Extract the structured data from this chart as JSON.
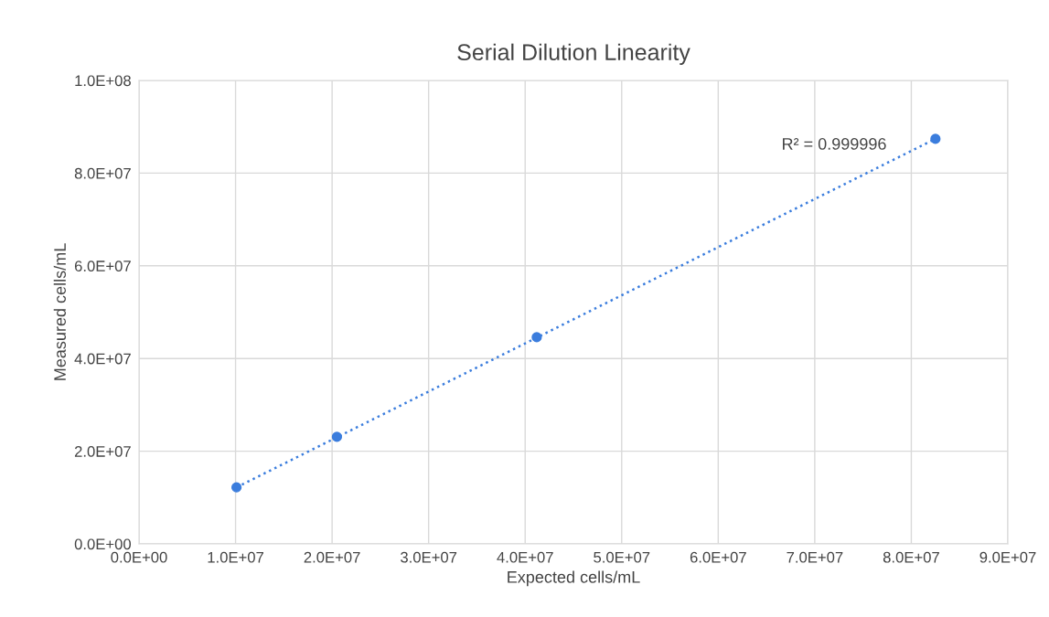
{
  "chart_data": {
    "type": "scatter",
    "title": "Serial Dilution Linearity",
    "xlabel": "Expected cells/mL",
    "ylabel": "Measured cells/mL",
    "series": [
      {
        "color": "#3b7ddd",
        "x": [
          10100000,
          20500000,
          41200000,
          82500000
        ],
        "values": [
          12200000,
          23100000,
          44600000,
          87400000
        ],
        "marker": "circle"
      },
      {
        "type": "line",
        "color": "#3b7ddd",
        "x": [
          10100000,
          82500000
        ],
        "values": [
          12200000,
          87400000
        ],
        "line_style": "dotted",
        "marker": "none"
      }
    ],
    "annotations": [
      "R² = 0.999996"
    ],
    "xlim": [
      0,
      90000000
    ],
    "ylim": [
      0,
      100000000
    ],
    "xticks": [
      {
        "value": 0,
        "label": "0.0E+00"
      },
      {
        "value": 10000000,
        "label": "1.0E+07"
      },
      {
        "value": 20000000,
        "label": "2.0E+07"
      },
      {
        "value": 30000000,
        "label": "3.0E+07"
      },
      {
        "value": 40000000,
        "label": "4.0E+07"
      },
      {
        "value": 50000000,
        "label": "5.0E+07"
      },
      {
        "value": 60000000,
        "label": "6.0E+07"
      },
      {
        "value": 70000000,
        "label": "7.0E+07"
      },
      {
        "value": 80000000,
        "label": "8.0E+07"
      },
      {
        "value": 90000000,
        "label": "9.0E+07"
      }
    ],
    "yticks": [
      {
        "value": 0,
        "label": "0.0E+00"
      },
      {
        "value": 20000000,
        "label": "2.0E+07"
      },
      {
        "value": 40000000,
        "label": "4.0E+07"
      },
      {
        "value": 60000000,
        "label": "6.0E+07"
      },
      {
        "value": 80000000,
        "label": "8.0E+07"
      },
      {
        "value": 100000000,
        "label": "1.0E+08"
      }
    ],
    "grid": true
  }
}
